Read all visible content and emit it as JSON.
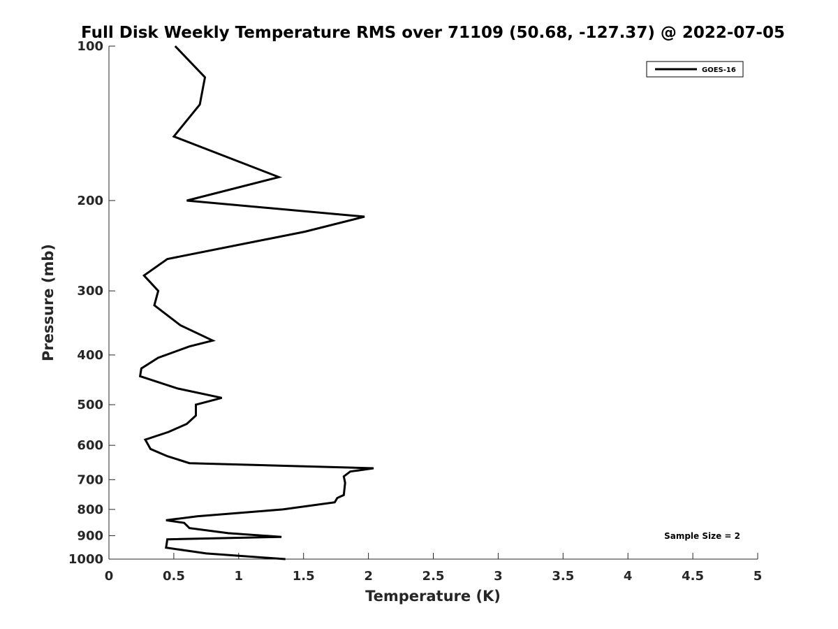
{
  "chart_data": {
    "type": "line",
    "title": "Full Disk Weekly Temperature RMS over 71109 (50.68, -127.37) @ 2022-07-05",
    "xlabel": "Temperature (K)",
    "ylabel": "Pressure (mb)",
    "xlim": [
      0,
      5
    ],
    "ylim": [
      100,
      1000
    ],
    "yscale": "log",
    "y_reversed": true,
    "grid": false,
    "legend_position": "top-right",
    "x_ticks": [
      "0",
      "0.5",
      "1",
      "1.5",
      "2",
      "2.5",
      "3",
      "3.5",
      "4",
      "4.5",
      "5"
    ],
    "x_tick_values": [
      0,
      0.5,
      1,
      1.5,
      2,
      2.5,
      3,
      3.5,
      4,
      4.5,
      5
    ],
    "y_ticks": [
      "100",
      "200",
      "300",
      "400",
      "500",
      "600",
      "700",
      "800",
      "900",
      "1000"
    ],
    "y_tick_values": [
      100,
      200,
      300,
      400,
      500,
      600,
      700,
      800,
      900,
      1000
    ],
    "series": [
      {
        "name": "GOES-16",
        "color": "#000000",
        "points": [
          [
            0.51,
            100
          ],
          [
            0.74,
            115
          ],
          [
            0.7,
            130
          ],
          [
            0.5,
            150
          ],
          [
            1.31,
            180
          ],
          [
            0.6,
            200
          ],
          [
            1.97,
            215
          ],
          [
            1.51,
            230
          ],
          [
            0.45,
            260
          ],
          [
            0.27,
            280
          ],
          [
            0.38,
            300
          ],
          [
            0.35,
            320
          ],
          [
            0.55,
            350
          ],
          [
            0.8,
            375
          ],
          [
            0.62,
            385
          ],
          [
            0.38,
            405
          ],
          [
            0.25,
            425
          ],
          [
            0.24,
            440
          ],
          [
            0.53,
            465
          ],
          [
            0.87,
            485
          ],
          [
            0.67,
            500
          ],
          [
            0.67,
            525
          ],
          [
            0.6,
            545
          ],
          [
            0.46,
            565
          ],
          [
            0.28,
            585
          ],
          [
            0.32,
            610
          ],
          [
            0.45,
            630
          ],
          [
            0.62,
            650
          ],
          [
            2.04,
            665
          ],
          [
            1.86,
            675
          ],
          [
            1.81,
            690
          ],
          [
            1.82,
            710
          ],
          [
            1.81,
            750
          ],
          [
            1.76,
            760
          ],
          [
            1.74,
            775
          ],
          [
            1.34,
            800
          ],
          [
            0.68,
            825
          ],
          [
            0.44,
            840
          ],
          [
            0.58,
            850
          ],
          [
            0.62,
            870
          ],
          [
            0.92,
            890
          ],
          [
            1.33,
            905
          ],
          [
            0.45,
            915
          ],
          [
            0.44,
            950
          ],
          [
            0.75,
            975
          ],
          [
            1.36,
            1000
          ]
        ]
      }
    ],
    "annotation": "Sample Size = 2"
  }
}
